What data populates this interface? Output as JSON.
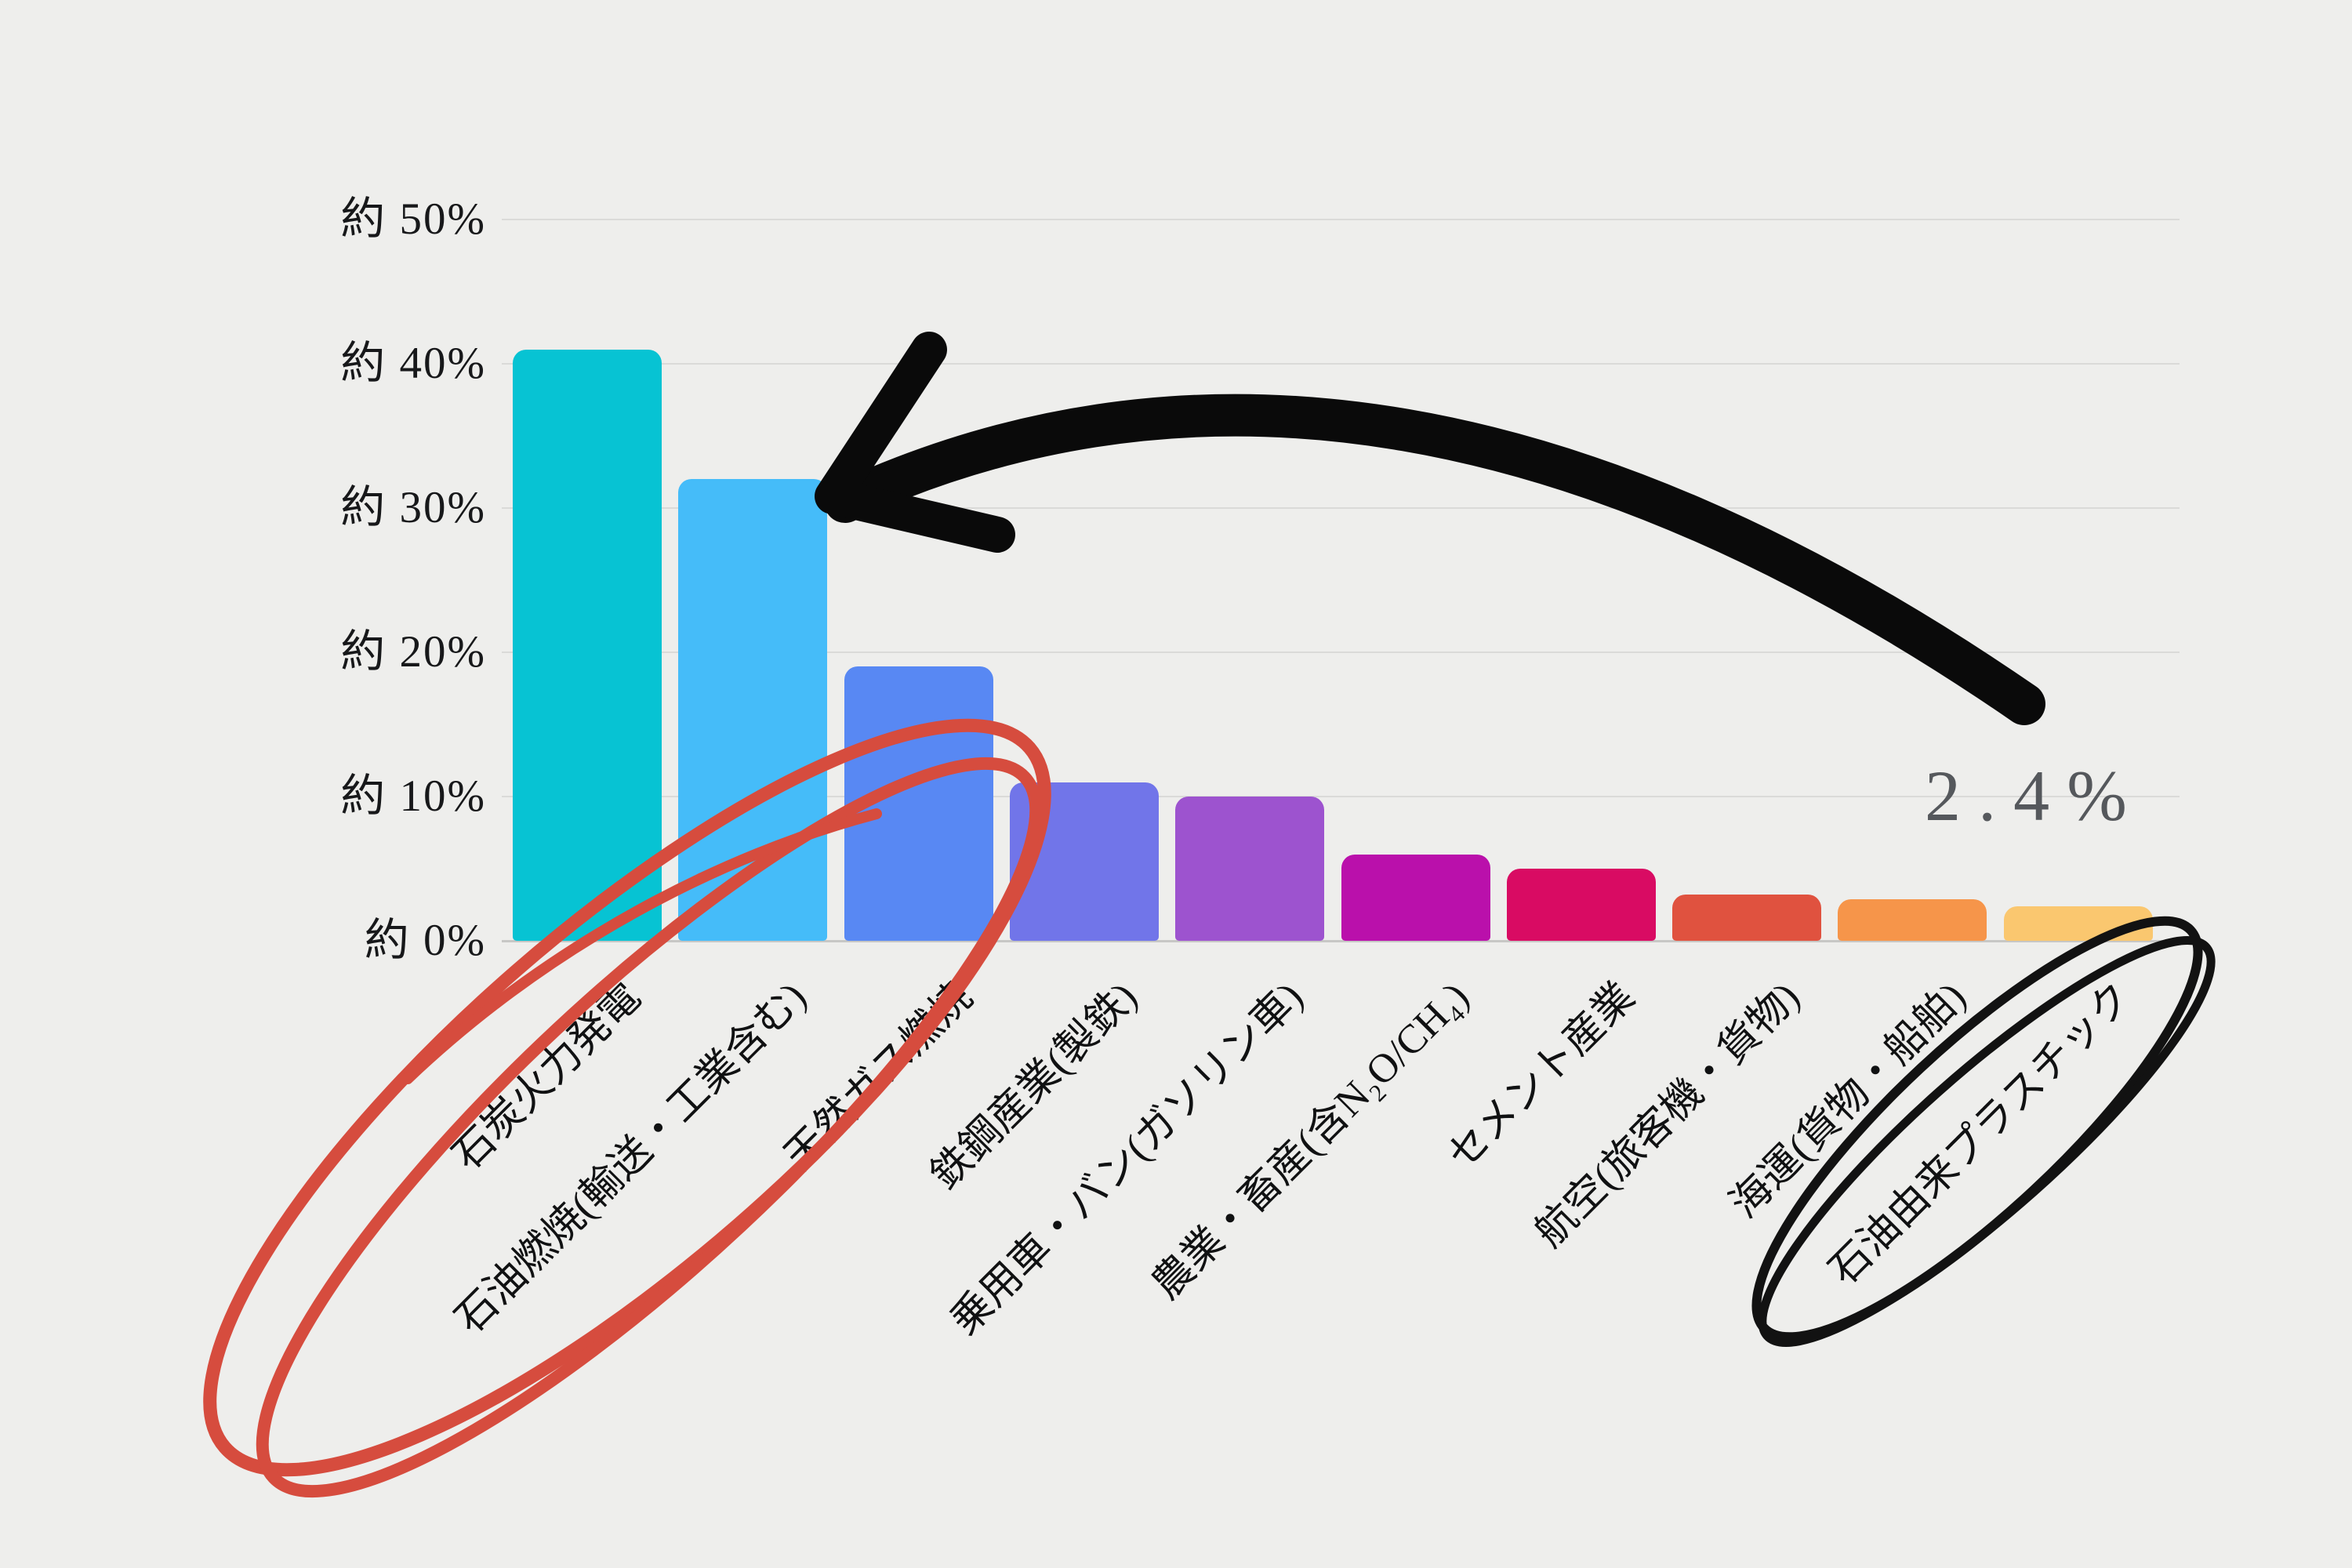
{
  "page": {
    "background": "#eeeeec"
  },
  "chart_data": {
    "type": "bar",
    "title": "",
    "xlabel": "",
    "ylabel": "",
    "ylim": [
      0,
      50
    ],
    "grid": true,
    "grid_color": "#dadad8",
    "axis_line_color": "#c7c7c5",
    "legend_position": "none",
    "categories": [
      "石炭火力発電",
      "石油燃焼(輸送・工業含む)",
      "天然ガス燃焼",
      "鉄鋼産業(製鉄)",
      "乗用車・バン(ガソリン車)",
      "農業・畜産(含N₂O/CH₄)",
      "セメント産業",
      "航空(旅客機・貨物)",
      "海運(貨物・船舶)",
      "石油由来プラスチック"
    ],
    "values": [
      41,
      32,
      19,
      11,
      10,
      6,
      5,
      3.2,
      2.9,
      2.4
    ],
    "bar_colors": [
      "#07c3d3",
      "#45bcf9",
      "#5888f3",
      "#7175e9",
      "#9d53cf",
      "#ba10ab",
      "#d90b63",
      "#e0523f",
      "#f6954a",
      "#fac76f"
    ],
    "yticks": [
      {
        "label": "約 50%",
        "value": 50
      },
      {
        "label": "約 40%",
        "value": 40
      },
      {
        "label": "約 30%",
        "value": 30
      },
      {
        "label": "約 20%",
        "value": 20
      },
      {
        "label": "約 10%",
        "value": 10
      },
      {
        "label": "約 0%",
        "value": 0
      }
    ]
  },
  "annotations": {
    "value_label": "2.4%",
    "value_label_color": "#55585c",
    "arrow_color": "#0a0a0a",
    "red_circle_color": "#d64c3e",
    "black_circle_color": "#121212"
  }
}
